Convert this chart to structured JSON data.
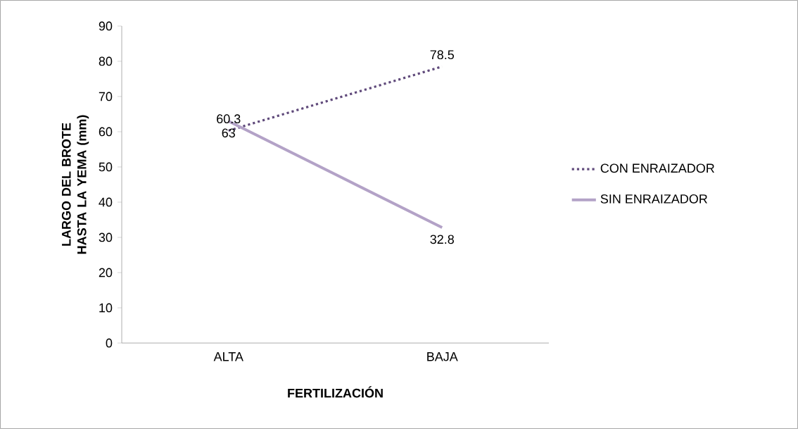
{
  "chart_data": {
    "type": "line",
    "xlabel": "FERTILIZACIÓN",
    "ylabel": "LARGO DEL BROTE HASTA LA YEMA (mm)",
    "categories": [
      "ALTA",
      "BAJA"
    ],
    "series": [
      {
        "name": "CON ENRAIZADOR",
        "color": "#604a7b",
        "values": [
          60.3,
          78.5
        ],
        "line_style": "dotted"
      },
      {
        "name": "SIN ENRAIZADOR",
        "color": "#b3a2c7",
        "values": [
          63,
          32.8
        ],
        "line_style": "solid"
      }
    ],
    "ylim": [
      0,
      90
    ],
    "yticks": [
      0,
      10,
      20,
      30,
      40,
      50,
      60,
      70,
      80,
      90
    ],
    "data_labels": true,
    "legend": "right"
  }
}
